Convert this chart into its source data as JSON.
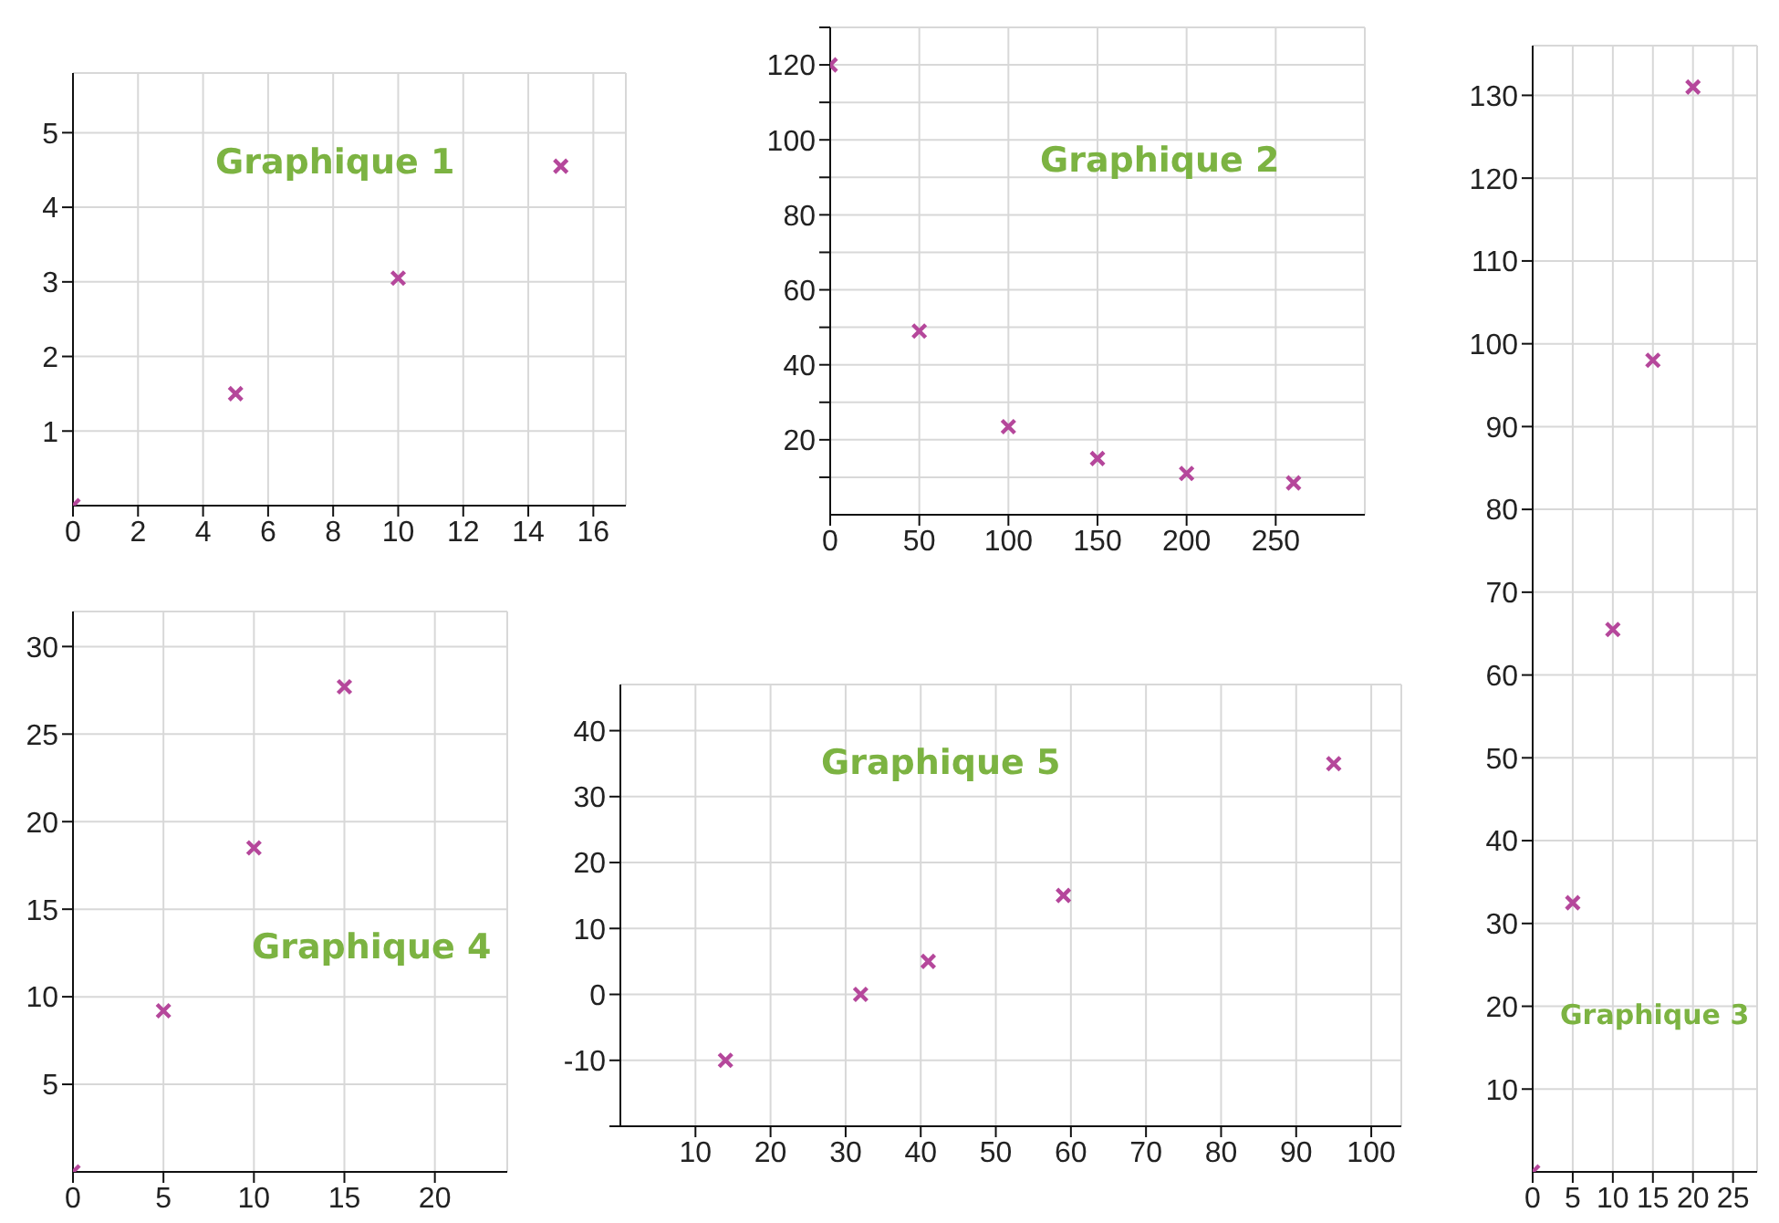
{
  "chart_data": [
    {
      "type": "scatter",
      "title": "Graphique 1",
      "x": [
        0,
        5,
        10,
        15
      ],
      "series": [
        {
          "color": "#b5479b",
          "values": [
            0,
            1.5,
            3.05,
            4.55
          ]
        }
      ],
      "xlim": [
        0,
        17
      ],
      "xticks": [
        0,
        2,
        4,
        6,
        8,
        10,
        12,
        14,
        16
      ],
      "ylim": [
        0,
        5.8
      ],
      "yticks": [
        1,
        2,
        3,
        4,
        5
      ],
      "grid": true,
      "marker": "cross"
    },
    {
      "type": "scatter",
      "title": "Graphique 2",
      "x": [
        0,
        50,
        100,
        150,
        200,
        260
      ],
      "series": [
        {
          "color": "#b5479b",
          "values": [
            120,
            49,
            23.5,
            15,
            11,
            8.5
          ]
        }
      ],
      "xlim": [
        0,
        300
      ],
      "xticks": [
        0,
        50,
        100,
        150,
        200,
        250
      ],
      "ylim": [
        0,
        130
      ],
      "yticks": [
        {
          "value": 10,
          "label": null
        },
        20,
        {
          "value": 30,
          "label": null
        },
        40,
        {
          "value": 50,
          "label": null
        },
        60,
        {
          "value": 70,
          "label": null
        },
        80,
        {
          "value": 90,
          "label": null
        },
        100,
        {
          "value": 110,
          "label": null
        },
        120,
        {
          "value": 130,
          "label": null
        }
      ],
      "grid": true,
      "marker": "cross"
    },
    {
      "type": "scatter",
      "title": "Graphique 3",
      "x": [
        0,
        5,
        10,
        15,
        20
      ],
      "series": [
        {
          "color": "#b5479b",
          "values": [
            0,
            32.5,
            65.5,
            98,
            131
          ]
        }
      ],
      "xlim": [
        0,
        28
      ],
      "xticks": [
        0,
        5,
        10,
        15,
        20,
        25
      ],
      "ylim": [
        0,
        136
      ],
      "yticks": [
        10,
        20,
        30,
        40,
        50,
        60,
        70,
        80,
        90,
        100,
        110,
        120,
        130
      ],
      "grid": true,
      "marker": "cross"
    },
    {
      "type": "scatter",
      "title": "Graphique 4",
      "x": [
        0,
        5,
        10,
        15
      ],
      "series": [
        {
          "color": "#b5479b",
          "values": [
            0,
            9.2,
            18.5,
            27.7
          ]
        }
      ],
      "xlim": [
        0,
        24
      ],
      "xticks": [
        0,
        5,
        10,
        15,
        20
      ],
      "ylim": [
        0,
        32
      ],
      "yticks": [
        5,
        10,
        15,
        20,
        25,
        30
      ],
      "grid": true,
      "marker": "cross"
    },
    {
      "type": "scatter",
      "title": "Graphique 5",
      "x": [
        14,
        32,
        41,
        59,
        95
      ],
      "series": [
        {
          "color": "#b5479b",
          "values": [
            -10,
            0,
            5,
            15,
            35
          ]
        }
      ],
      "xlim": [
        0,
        104
      ],
      "xticks": [
        10,
        20,
        30,
        40,
        50,
        60,
        70,
        80,
        90,
        100
      ],
      "ylim": [
        -20,
        47
      ],
      "yticks": [
        {
          "value": -20,
          "label": null
        },
        -10,
        0,
        10,
        20,
        30,
        40
      ],
      "grid": true,
      "marker": "cross"
    }
  ]
}
